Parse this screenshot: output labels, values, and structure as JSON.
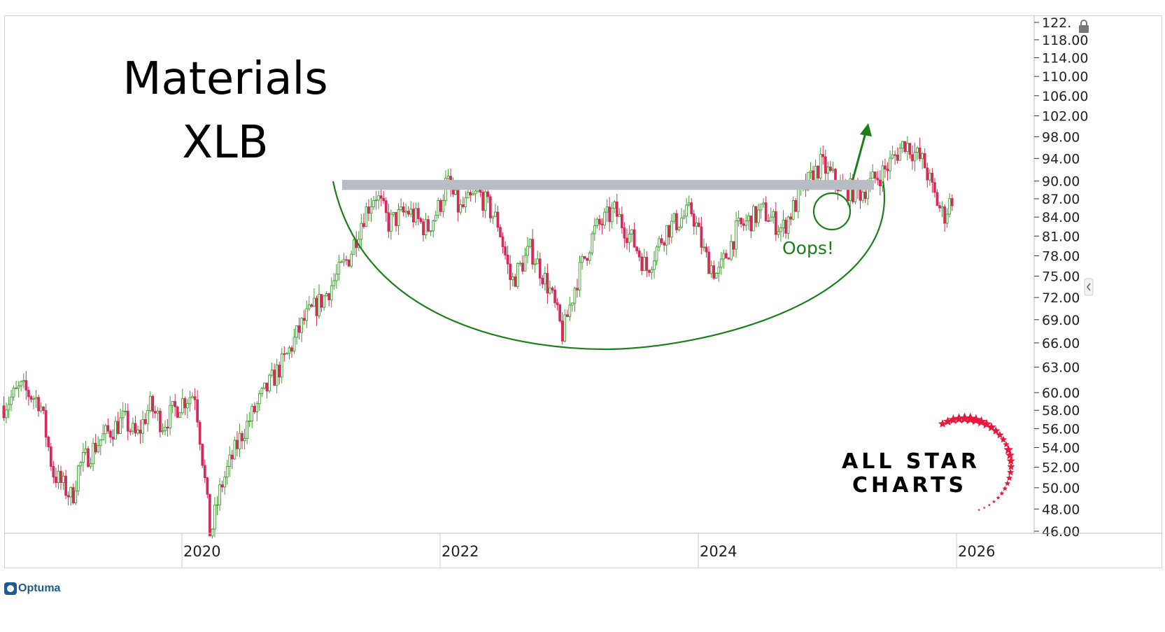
{
  "chart_data": {
    "type": "candlestick",
    "title": "Materials",
    "subtitle": "XLB",
    "y_scale": "log",
    "ylim": [
      46,
      122
    ],
    "y_ticks": [
      "122.",
      "118.00",
      "114.00",
      "110.00",
      "106.00",
      "102.00",
      "98.00",
      "94.00",
      "90.00",
      "87.00",
      "84.00",
      "81.00",
      "78.00",
      "75.00",
      "72.00",
      "69.00",
      "66.00",
      "63.00",
      "60.00",
      "58.00",
      "56.00",
      "54.00",
      "52.00",
      "50.00",
      "48.00",
      "46.00"
    ],
    "x_ticks": [
      "2020",
      "2022",
      "2024",
      "2026"
    ],
    "xlim": [
      2018.6,
      2026.8
    ],
    "grid": false,
    "price_path": [
      [
        2018.62,
        58.5
      ],
      [
        2018.75,
        60.5
      ],
      [
        2018.9,
        59
      ],
      [
        2019.0,
        51.5
      ],
      [
        2019.15,
        49
      ],
      [
        2019.2,
        52
      ],
      [
        2019.38,
        55
      ],
      [
        2019.55,
        57
      ],
      [
        2019.65,
        55
      ],
      [
        2019.75,
        58.5
      ],
      [
        2019.85,
        56.5
      ],
      [
        2020.0,
        59
      ],
      [
        2020.1,
        60
      ],
      [
        2020.15,
        54
      ],
      [
        2020.22,
        45.5
      ],
      [
        2020.3,
        50
      ],
      [
        2020.45,
        55
      ],
      [
        2020.6,
        59
      ],
      [
        2020.8,
        64
      ],
      [
        2020.95,
        69
      ],
      [
        2021.1,
        72
      ],
      [
        2021.3,
        78
      ],
      [
        2021.4,
        84
      ],
      [
        2021.5,
        88
      ],
      [
        2021.6,
        83
      ],
      [
        2021.75,
        85
      ],
      [
        2021.9,
        82
      ],
      [
        2022.0,
        86
      ],
      [
        2022.05,
        90
      ],
      [
        2022.15,
        85
      ],
      [
        2022.3,
        88
      ],
      [
        2022.45,
        83
      ],
      [
        2022.55,
        74
      ],
      [
        2022.7,
        79
      ],
      [
        2022.85,
        73
      ],
      [
        2022.95,
        67
      ],
      [
        2023.05,
        74
      ],
      [
        2023.2,
        82
      ],
      [
        2023.35,
        85
      ],
      [
        2023.5,
        80
      ],
      [
        2023.6,
        76
      ],
      [
        2023.75,
        82
      ],
      [
        2023.95,
        85
      ],
      [
        2024.05,
        78
      ],
      [
        2024.15,
        75
      ],
      [
        2024.3,
        82
      ],
      [
        2024.5,
        85
      ],
      [
        2024.65,
        82
      ],
      [
        2024.8,
        88
      ],
      [
        2024.95,
        93
      ],
      [
        2025.1,
        89
      ],
      [
        2025.25,
        88
      ],
      [
        2025.45,
        92
      ],
      [
        2025.6,
        97
      ],
      [
        2025.75,
        93
      ],
      [
        2025.82,
        88
      ],
      [
        2025.9,
        84
      ],
      [
        2025.98,
        88
      ]
    ],
    "resistance_band": [
      88.5,
      90.2
    ],
    "annotations": [
      {
        "text": "Oops!",
        "color": "#1a7f1a"
      }
    ],
    "colors": {
      "up": "#3a9e2a",
      "down": "#d62a5a",
      "band": "#b8bcc4",
      "annotation": "#1a7f1a",
      "star": "#e8193c"
    }
  },
  "branding": {
    "logo_line1": "ALL STAR",
    "logo_line2": "CHARTS",
    "watermark": "Optuma"
  }
}
